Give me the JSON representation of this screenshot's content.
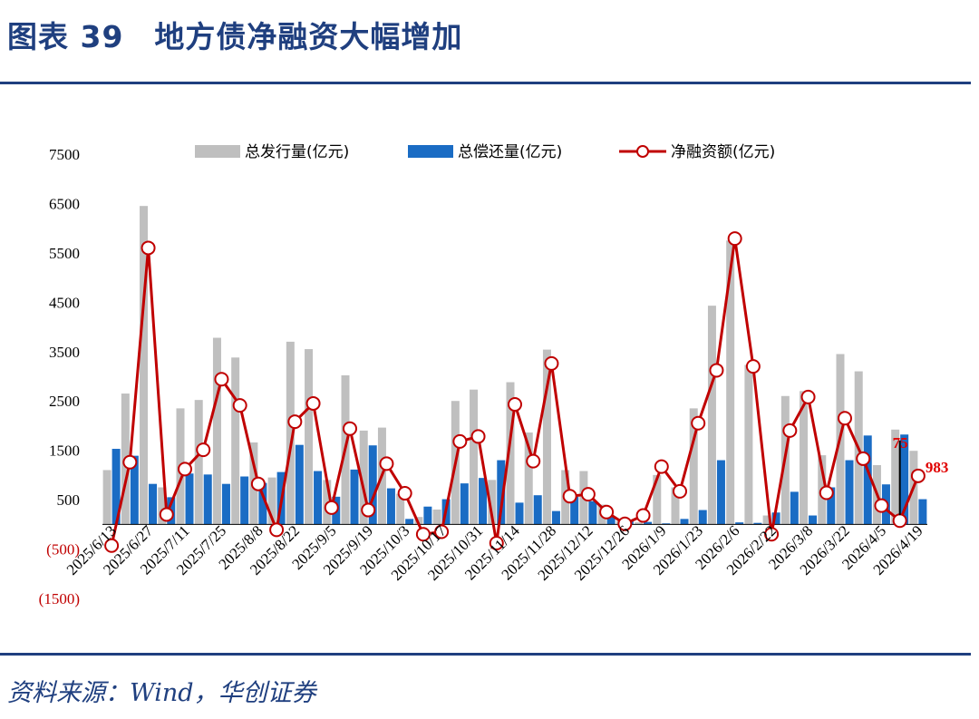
{
  "header": {
    "title": "图表 39　地方债净融资大幅增加"
  },
  "footer": {
    "source": "资料来源：Wind，华创证券"
  },
  "colors": {
    "issuance": "#bfbfbf",
    "repayment": "#1a6cc4",
    "net": "#c00000",
    "rule": "#1f3f7f"
  },
  "chart_data": {
    "type": "bar",
    "title": "",
    "xlabel": "",
    "ylabel": "",
    "ylim": [
      -1500,
      7500
    ],
    "yticks": [
      7500,
      6500,
      5500,
      4500,
      3500,
      2500,
      1500,
      500,
      -500,
      -1500
    ],
    "ytick_labels": [
      "7500",
      "6500",
      "5500",
      "4500",
      "3500",
      "2500",
      "1500",
      "500",
      "(500)",
      "(1500)"
    ],
    "grid": false,
    "legend_position": "top",
    "legend": [
      {
        "name": "总发行量(亿元)",
        "type": "bar",
        "color": "#bfbfbf"
      },
      {
        "name": "总偿还量(亿元)",
        "type": "bar",
        "color": "#1a6cc4"
      },
      {
        "name": "净融资额(亿元)",
        "type": "line",
        "color": "#c00000"
      }
    ],
    "x_tick_labels": [
      "2025/6/13",
      "2025/6/27",
      "2025/7/11",
      "2025/7/25",
      "2025/8/8",
      "2025/8/22",
      "2025/9/5",
      "2025/9/19",
      "2025/10/3",
      "2025/10/17",
      "2025/10/31",
      "2025/11/14",
      "2025/11/28",
      "2025/12/12",
      "2025/12/26",
      "2026/1/9",
      "2026/1/23",
      "2026/2/6",
      "2026/2/22",
      "2026/3/8",
      "2026/3/22",
      "2026/4/5",
      "2026/4/19"
    ],
    "series": [
      {
        "name": "总发行量(亿元)",
        "values": [
          1100,
          2650,
          6450,
          750,
          2350,
          2520,
          3780,
          3380,
          1660,
          950,
          3700,
          3550,
          900,
          3020,
          1900,
          1960,
          620,
          150,
          300,
          2500,
          2730,
          900,
          2880,
          1860,
          3540,
          1100,
          1080,
          400,
          70,
          40,
          1000,
          750,
          2350,
          4430,
          5750,
          3230,
          180,
          2600,
          2700,
          1400,
          3450,
          3100,
          1200,
          1920,
          1490
        ]
      },
      {
        "name": "总偿还量(亿元)",
        "values": [
          1530,
          1390,
          820,
          550,
          1030,
          1010,
          820,
          970,
          840,
          1060,
          1610,
          1080,
          560,
          1110,
          1600,
          730,
          110,
          360,
          510,
          830,
          940,
          1300,
          440,
          590,
          270,
          560,
          470,
          150,
          60,
          50,
          20,
          110,
          290,
          1300,
          40,
          30,
          240,
          660,
          180,
          750,
          1300,
          1800,
          810,
          1820,
          510
        ]
      },
      {
        "name": "净融资额(亿元)",
        "values": [
          -430,
          1260,
          5600,
          200,
          1120,
          1510,
          2940,
          2410,
          820,
          -110,
          2080,
          2450,
          340,
          1940,
          290,
          1230,
          630,
          -200,
          -150,
          1680,
          1780,
          -380,
          2430,
          1280,
          3260,
          570,
          610,
          250,
          10,
          180,
          1170,
          670,
          2050,
          3120,
          5790,
          3200,
          -200,
          1900,
          2580,
          640,
          2150,
          1330,
          380,
          75,
          983
        ]
      }
    ],
    "annotations": [
      {
        "label": "75"
      },
      {
        "label": "983"
      }
    ]
  }
}
